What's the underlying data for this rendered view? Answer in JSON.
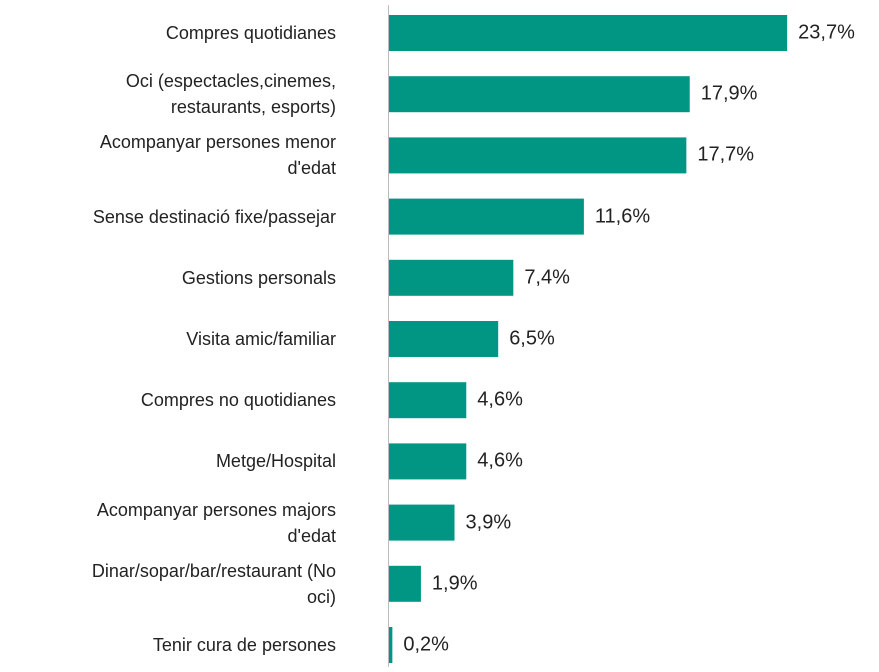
{
  "chart_data": {
    "type": "barh",
    "categories": [
      "Compres quotidianes",
      "Oci (espectacles,cinemes,\nrestaurants, esports)",
      "Acompanyar persones menor\nd'edat",
      "Sense destinació fixe/passejar",
      "Gestions personals",
      "Visita amic/familiar",
      "Compres no quotidianes",
      "Metge/Hospital",
      "Acompanyar persones majors\nd'edat",
      "Dinar/sopar/bar/restaurant (No\noci)",
      "Tenir cura de persones"
    ],
    "values": [
      23.7,
      17.9,
      17.7,
      11.6,
      7.4,
      6.5,
      4.6,
      4.6,
      3.9,
      1.9,
      0.2
    ],
    "value_labels": [
      "23,7%",
      "17,9%",
      "17,7%",
      "11,6%",
      "7,4%",
      "6,5%",
      "4,6%",
      "4,6%",
      "3,9%",
      "1,9%",
      "0,2%"
    ],
    "color": "#009683",
    "xlim": [
      0,
      25
    ]
  }
}
